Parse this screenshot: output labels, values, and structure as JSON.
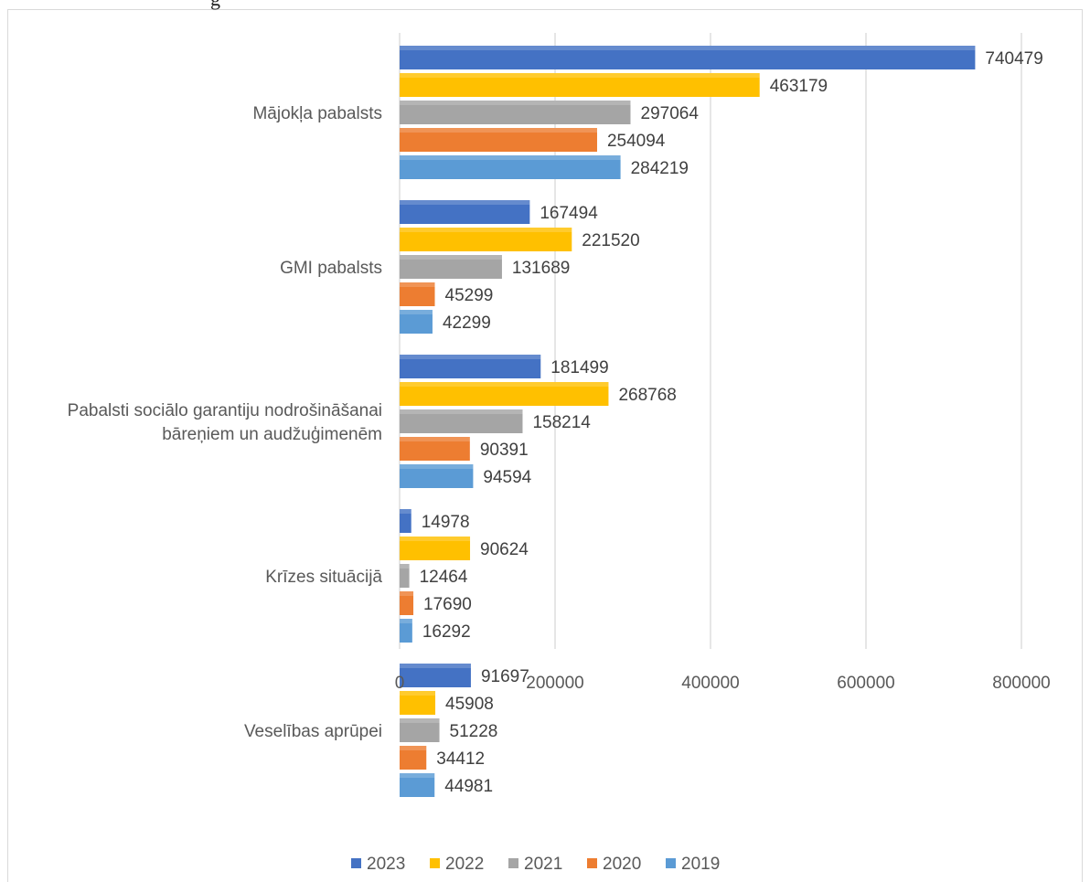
{
  "chart_data": {
    "type": "bar",
    "orientation": "horizontal",
    "categories": [
      "Mājokļa pabalsts",
      "GMI pabalsts",
      "Pabalsti sociālo garantiju nodrošināšanai bāreņiem un  audžuģimenēm",
      "Krīzes situācijā",
      "Veselības aprūpei"
    ],
    "category_lines": [
      [
        "Mājokļa pabalsts"
      ],
      [
        "GMI pabalsts"
      ],
      [
        "Pabalsti sociālo garantiju nodrošināšanai",
        "bāreņiem un  audžuģimenēm"
      ],
      [
        "Krīzes situācijā"
      ],
      [
        "Veselības aprūpei"
      ]
    ],
    "series": [
      {
        "name": "2023",
        "color": "#4472C4",
        "values": [
          740479,
          167494,
          181499,
          14978,
          91697
        ]
      },
      {
        "name": "2022",
        "color": "#FFC000",
        "values": [
          463179,
          221520,
          268768,
          90624,
          45908
        ]
      },
      {
        "name": "2021",
        "color": "#A5A5A5",
        "values": [
          297064,
          131689,
          158214,
          12464,
          51228
        ]
      },
      {
        "name": "2020",
        "color": "#ED7D31",
        "values": [
          254094,
          45299,
          90391,
          17690,
          34412
        ]
      },
      {
        "name": "2019",
        "color": "#5B9BD5",
        "values": [
          284219,
          42299,
          94594,
          16292,
          44981
        ]
      }
    ],
    "xlim": [
      0,
      800000
    ],
    "xticks": [
      0,
      200000,
      400000,
      600000,
      800000
    ],
    "xtick_labels": [
      "0",
      "200000",
      "400000",
      "600000",
      "800000"
    ],
    "grid": "vertical",
    "legend": "bottom",
    "data_labels": true
  },
  "top_text": "g"
}
